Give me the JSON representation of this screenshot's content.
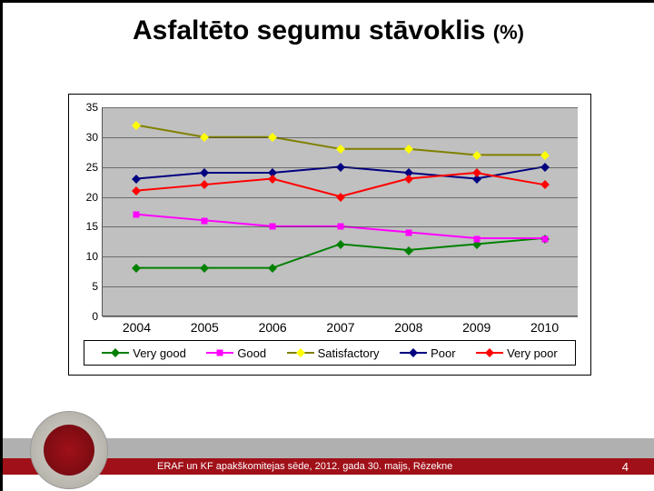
{
  "title": {
    "main": "Asfaltēto segumu stāvoklis",
    "suffix": "(%)"
  },
  "chart": {
    "type": "line",
    "background_color": "#c0c0c0",
    "ylim": [
      0,
      35
    ],
    "ytick_step": 5,
    "yticks": [
      0,
      5,
      10,
      15,
      20,
      25,
      30,
      35
    ],
    "categories": [
      "2004",
      "2005",
      "2006",
      "2007",
      "2008",
      "2009",
      "2010"
    ],
    "series": [
      {
        "name": "Very good",
        "color": "#008000",
        "marker": "diamond",
        "values": [
          8,
          8,
          8,
          12,
          11,
          12,
          13
        ]
      },
      {
        "name": "Good",
        "color": "#ff00ff",
        "marker": "square",
        "values": [
          17,
          16,
          15,
          15,
          14,
          13,
          13
        ]
      },
      {
        "name": "Satisfactory",
        "color": "#ffff00",
        "marker": "diamond",
        "line_color": "#808000",
        "values": [
          32,
          30,
          30,
          28,
          28,
          27,
          27
        ]
      },
      {
        "name": "Poor",
        "color": "#000080",
        "marker": "diamond",
        "values": [
          23,
          24,
          24,
          25,
          24,
          23,
          25
        ]
      },
      {
        "name": "Very poor",
        "color": "#ff0000",
        "marker": "diamond",
        "values": [
          21,
          22,
          23,
          20,
          23,
          24,
          22
        ]
      }
    ]
  },
  "footer": {
    "text": "ERAF un KF apakškomitejas sēde, 2012. gada 30. maijs, Rēzekne",
    "page": "4",
    "grey_color": "#b0b0b0",
    "red_color": "#a01018"
  }
}
